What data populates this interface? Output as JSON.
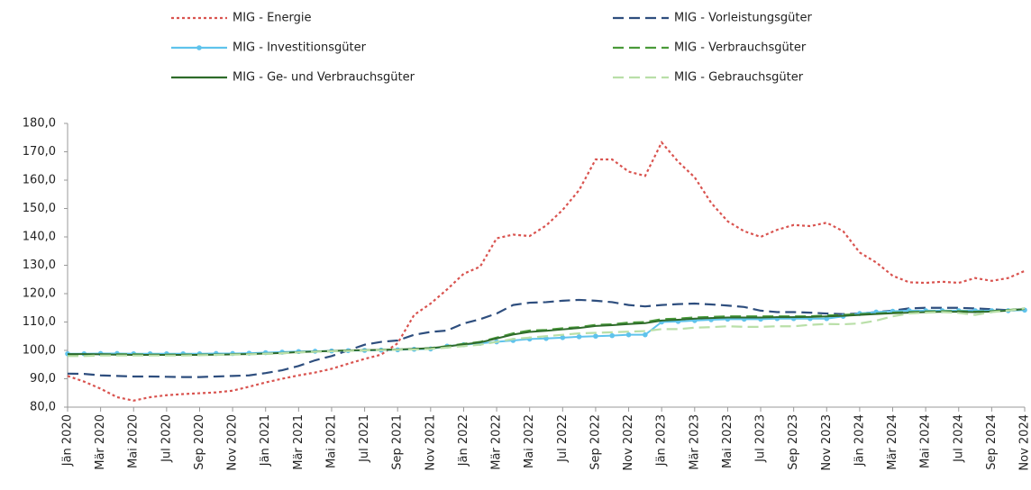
{
  "chart_data": {
    "type": "line",
    "categories": [
      "Jän 2020",
      null,
      "Mär 2020",
      null,
      "Mai 2020",
      null,
      "Jul 2020",
      null,
      "Sep 2020",
      null,
      "Nov 2020",
      null,
      "Jän 2021",
      null,
      "Mär 2021",
      null,
      "Mai 2021",
      null,
      "Jul 2021",
      null,
      "Sep 2021",
      null,
      "Nov 2021",
      null,
      "Jän 2022",
      null,
      "Mär 2022",
      null,
      "Mai 2022",
      null,
      "Jul 2022",
      null,
      "Sep 2022",
      null,
      "Nov 2022",
      null,
      "Jän 2023",
      null,
      "Mär 2023",
      null,
      "Mai 2023",
      null,
      "Jul 2023",
      null,
      "Sep 2023",
      null,
      "Nov 2023",
      null,
      "Jän 2024",
      null,
      "Mär 2024",
      null,
      "Mai 2024",
      null,
      "Jul 2024",
      null,
      "Sep 2024",
      null,
      "Nov 2024"
    ],
    "series": [
      {
        "name": "MIG - Energie",
        "color": "#d9534f",
        "style": "dotted",
        "values": [
          91,
          89,
          86.5,
          83.5,
          82.3,
          83.5,
          84.2,
          84.6,
          84.9,
          85.2,
          85.8,
          87.2,
          88.7,
          90,
          91.2,
          92.2,
          93.5,
          95.3,
          97,
          98.5,
          102.5,
          112.5,
          116.5,
          121.5,
          127,
          129.5,
          139.5,
          140.8,
          140.3,
          144,
          149.5,
          156.5,
          167.3,
          167.3,
          163,
          161.5,
          173.3,
          166.5,
          161,
          152,
          145.5,
          142,
          140,
          142.5,
          144.2,
          143.8,
          145,
          142,
          134.5,
          131,
          126.3,
          124,
          123.8,
          124.2,
          123.8,
          125.5,
          124.5,
          125.5,
          128
        ]
      },
      {
        "name": "MIG - Vorleistungsgüter",
        "color": "#2e4e7e",
        "style": "dashed",
        "values": [
          91.8,
          91.7,
          91.2,
          91,
          90.8,
          90.8,
          90.7,
          90.6,
          90.6,
          90.8,
          91,
          91.2,
          92,
          93,
          94.5,
          96.5,
          98,
          100,
          102,
          103,
          103.5,
          105.5,
          106.5,
          107,
          109.5,
          111,
          113,
          116,
          116.8,
          117,
          117.5,
          117.8,
          117.5,
          117,
          116,
          115.5,
          116,
          116.3,
          116.5,
          116.2,
          115.8,
          115.3,
          114,
          113.5,
          113.5,
          113.3,
          113,
          112.8,
          113,
          113.5,
          114,
          114.8,
          115,
          115,
          115,
          114.8,
          114.5,
          114.2,
          114.5
        ]
      },
      {
        "name": "MIG - Investitionsgüter",
        "color": "#5fc3ec",
        "style": "solid",
        "markers": true,
        "values": [
          98.8,
          98.8,
          98.9,
          98.9,
          98.8,
          98.8,
          98.8,
          98.8,
          98.8,
          98.9,
          98.9,
          99,
          99.2,
          99.4,
          99.6,
          99.7,
          99.8,
          99.9,
          100,
          100.1,
          100.2,
          100.4,
          100.5,
          101.5,
          102,
          102.5,
          103,
          103.5,
          104,
          104.2,
          104.5,
          104.8,
          105,
          105.2,
          105.5,
          105.5,
          110,
          110.2,
          110.5,
          110.8,
          111,
          111,
          111,
          111.2,
          111.2,
          111.2,
          111.2,
          112,
          113,
          113.5,
          113.8,
          114,
          114,
          114,
          114,
          114,
          114,
          114,
          114.2
        ]
      },
      {
        "name": "MIG - Verbrauchsgüter",
        "color": "#4a9a3a",
        "style": "dashed",
        "values": [
          98.5,
          98.5,
          98.6,
          98.6,
          98.6,
          98.5,
          98.5,
          98.5,
          98.5,
          98.5,
          98.6,
          98.7,
          98.8,
          99,
          99.3,
          99.5,
          99.7,
          99.9,
          100,
          100.2,
          100.3,
          100.5,
          100.8,
          101.5,
          102.3,
          103,
          104.5,
          106,
          107,
          107.2,
          107.8,
          108.2,
          109,
          109.2,
          109.8,
          110,
          111,
          111.2,
          111.6,
          111.8,
          112,
          112,
          112,
          112,
          112,
          112,
          112.3,
          112.5,
          112.8,
          113,
          113.3,
          113.5,
          113.7,
          113.8,
          113.8,
          113.6,
          113.8,
          114.2,
          114.8
        ]
      },
      {
        "name": "MIG - Ge- und Verbrauchsgüter",
        "color": "#2e6b2a",
        "style": "solid",
        "values": [
          98.7,
          98.7,
          98.6,
          98.5,
          98.4,
          98.4,
          98.4,
          98.4,
          98.4,
          98.5,
          98.6,
          98.7,
          98.9,
          99.1,
          99.4,
          99.6,
          99.8,
          100,
          100.1,
          100.2,
          100.3,
          100.5,
          100.8,
          101.4,
          102.1,
          102.8,
          104.2,
          105.6,
          106.5,
          106.9,
          107.4,
          107.9,
          108.6,
          108.9,
          109.3,
          109.6,
          110.5,
          110.8,
          111.2,
          111.4,
          111.6,
          111.6,
          111.6,
          111.7,
          111.7,
          111.8,
          112,
          112.2,
          112.5,
          112.8,
          113.1,
          113.3,
          113.5,
          113.6,
          113.6,
          113.5,
          113.7,
          114,
          114.6
        ]
      },
      {
        "name": "MIG - Gebrauchsgüter",
        "color": "#b9dfa8",
        "style": "dashed",
        "values": [
          98,
          98,
          98.2,
          98.2,
          98.2,
          98.2,
          98.2,
          98.2,
          98.3,
          98.4,
          98.5,
          98.6,
          98.8,
          99,
          99.3,
          99.5,
          99.7,
          99.8,
          100,
          100.1,
          100.2,
          100.3,
          100.5,
          101,
          101.5,
          102,
          103,
          104,
          104.5,
          105,
          105.5,
          106,
          106.2,
          106.4,
          106.6,
          106.8,
          107.5,
          107.5,
          108,
          108.2,
          108.5,
          108.3,
          108.3,
          108.5,
          108.5,
          109,
          109.3,
          109.2,
          109.5,
          110.5,
          112,
          113,
          113.3,
          113.5,
          113.2,
          112.5,
          113.5,
          114,
          114.8
        ]
      }
    ],
    "ylim": [
      80,
      180
    ],
    "yticks": [
      {
        "value": 80,
        "label": "80,0"
      },
      {
        "value": 90,
        "label": "90,0"
      },
      {
        "value": 100,
        "label": "100,0"
      },
      {
        "value": 110,
        "label": "110,0"
      },
      {
        "value": 120,
        "label": "120,0"
      },
      {
        "value": 130,
        "label": "130,0"
      },
      {
        "value": 140,
        "label": "140,0"
      },
      {
        "value": 150,
        "label": "150,0"
      },
      {
        "value": 160,
        "label": "160,0"
      },
      {
        "value": 170,
        "label": "170,0"
      },
      {
        "value": 180,
        "label": "180,0"
      }
    ],
    "grid": false
  }
}
